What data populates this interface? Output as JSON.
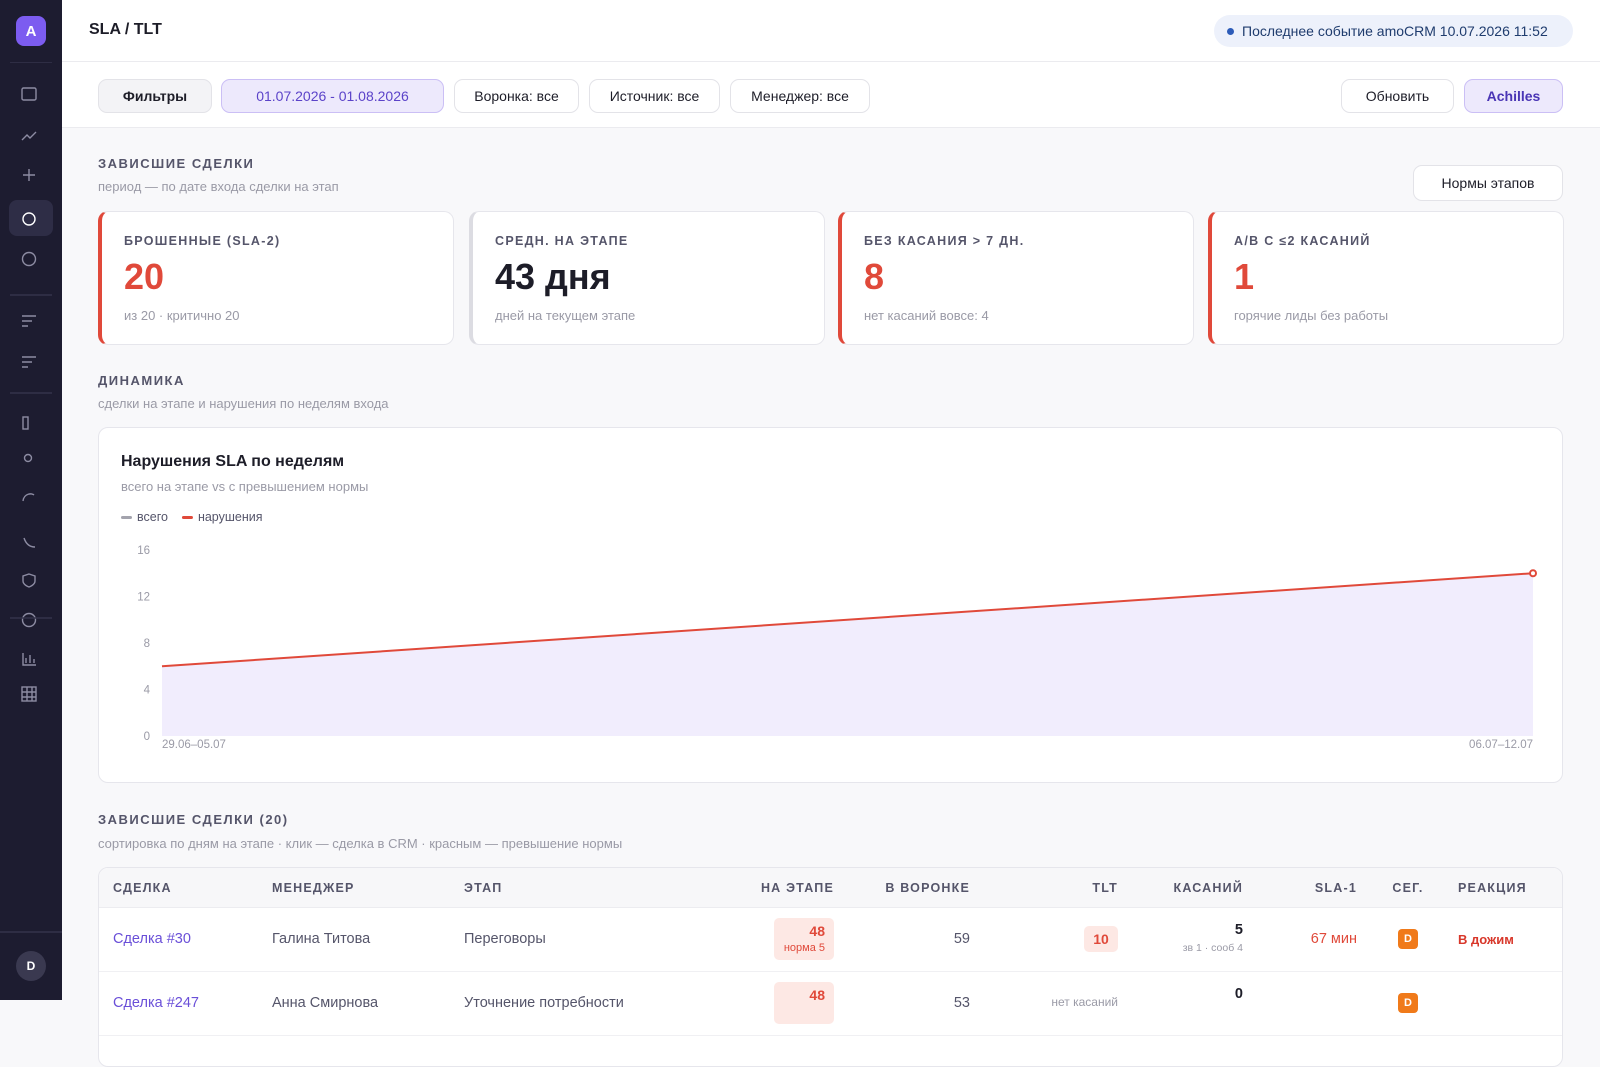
{
  "header": {
    "breadcrumb": "SLA / TLT",
    "status": "Последнее событие amoCRM 10.07.2026 11:52"
  },
  "sidebar": {
    "logo": "A",
    "user": "D"
  },
  "filters": {
    "filters": "Фильтры",
    "date": "01.07.2026 - 01.08.2026",
    "funnel": "Воронка: все",
    "source": "Источник: все",
    "manager": "Менеджер: все",
    "refresh": "Обновить",
    "assistant": "Achilles"
  },
  "stuck": {
    "title": "ЗАВИСШИЕ СДЕЛКИ",
    "subtitle": "период — по дате входа сделки на этап",
    "norms_button": "Нормы этапов"
  },
  "kpis": [
    {
      "label": "БРОШЕННЫЕ (SLA-2)",
      "value": "20",
      "note": "из 20 · критично 20",
      "accent": true
    },
    {
      "label": "СРЕДН. НА ЭТАПЕ",
      "value": "43 дня",
      "note": "дней на текущем этапе",
      "accent": false
    },
    {
      "label": "БЕЗ КАСАНИЯ > 7 ДН.",
      "value": "8",
      "note": "нет касаний вовсе: 4",
      "accent": true
    },
    {
      "label": "A/B С ≤2 КАСАНИЙ",
      "value": "1",
      "note": "горячие лиды без работы",
      "accent": true
    }
  ],
  "dynamics": {
    "title": "ДИНАМИКА",
    "subtitle": "сделки на этапе и нарушения по неделям входа"
  },
  "chart": {
    "type": "line",
    "title": "Нарушения SLA по неделям",
    "subtitle": "всего на этапе vs с превышением нормы",
    "categories": [
      "29.06–05.07",
      "06.07–12.07"
    ],
    "series": [
      {
        "name": "всего",
        "color": "#a3a3ad",
        "fill": "#f1edfd",
        "values": [
          6,
          14
        ]
      },
      {
        "name": "нарушения",
        "color": "#e0493a",
        "values": [
          6,
          14
        ]
      }
    ],
    "ylim": [
      0,
      16
    ],
    "yticks": [
      0,
      4,
      8,
      12,
      16
    ],
    "grid": false
  },
  "table": {
    "title": "ЗАВИСШИЕ СДЕЛКИ (20)",
    "subtitle": "сортировка по дням на этапе · клик — сделка в CRM · красным — превышение нормы",
    "columns": [
      "СДЕЛКА",
      "МЕНЕДЖЕР",
      "ЭТАП",
      "НА ЭТАПЕ",
      "В ВОРОНКЕ",
      "TLT",
      "КАСАНИЙ",
      "SLA-1",
      "СЕГ.",
      "РЕАКЦИЯ"
    ],
    "rows": [
      {
        "deal": "Сделка #30",
        "manager": "Галина Титова",
        "stage": "Переговоры",
        "on_stage": "48",
        "norm": "норма 5",
        "funnel": "59",
        "tlt": "10",
        "touches": "5",
        "touches_detail": "зв 1 · сооб 4",
        "sla": "67 мин",
        "segment": "D",
        "reaction": "В дожим"
      },
      {
        "deal": "Сделка #247",
        "manager": "Анна Смирнова",
        "stage": "Уточнение потребности",
        "on_stage": "48",
        "funnel": "53",
        "tlt_note": "нет касаний",
        "touches": "0",
        "segment": "D"
      }
    ]
  }
}
